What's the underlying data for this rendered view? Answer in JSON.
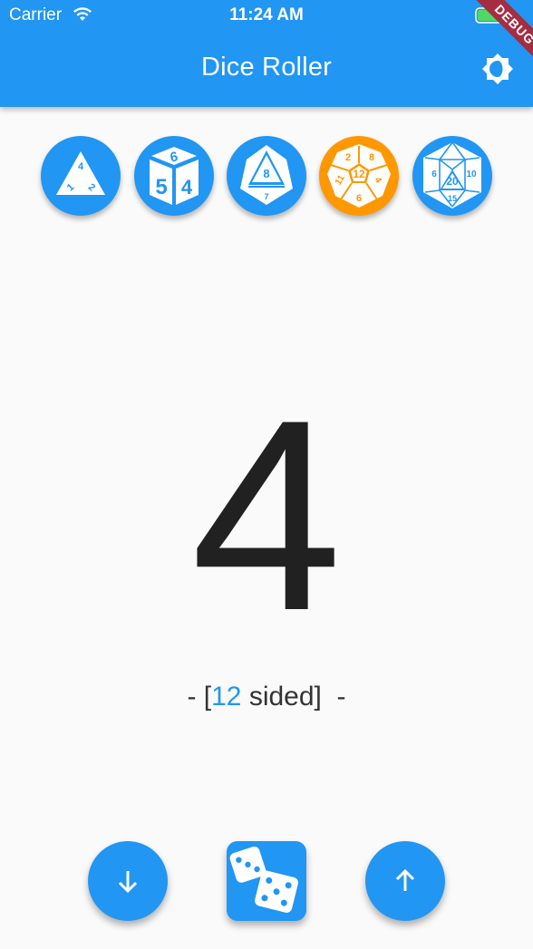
{
  "status_bar": {
    "carrier": "Carrier",
    "time": "11:24 AM"
  },
  "app": {
    "title": "Dice Roller",
    "debug_banner": "DEBUG"
  },
  "dice": [
    {
      "name": "d4",
      "faces": [
        "4",
        "1",
        "2"
      ],
      "selected": false
    },
    {
      "name": "d6",
      "faces": [
        "6",
        "5",
        "4"
      ],
      "selected": false
    },
    {
      "name": "d8",
      "faces": [
        "8",
        "7"
      ],
      "selected": false
    },
    {
      "name": "d12",
      "faces": [
        "2",
        "8",
        "12",
        "11",
        "4",
        "6"
      ],
      "selected": true
    },
    {
      "name": "d20",
      "faces": [
        "6",
        "10",
        "20",
        "15"
      ],
      "selected": false
    }
  ],
  "result": {
    "value": "4"
  },
  "sides_label": {
    "prefix": "- [",
    "count": "12",
    "suffix": " sided]  -"
  },
  "controls": {
    "decrease_icon": "arrow-down-icon",
    "roll_icon": "dice-icon",
    "increase_icon": "arrow-up-icon"
  },
  "colors": {
    "primary": "#2196f3",
    "selected": "#ff9800",
    "background": "#fafafa",
    "text": "#212121"
  }
}
